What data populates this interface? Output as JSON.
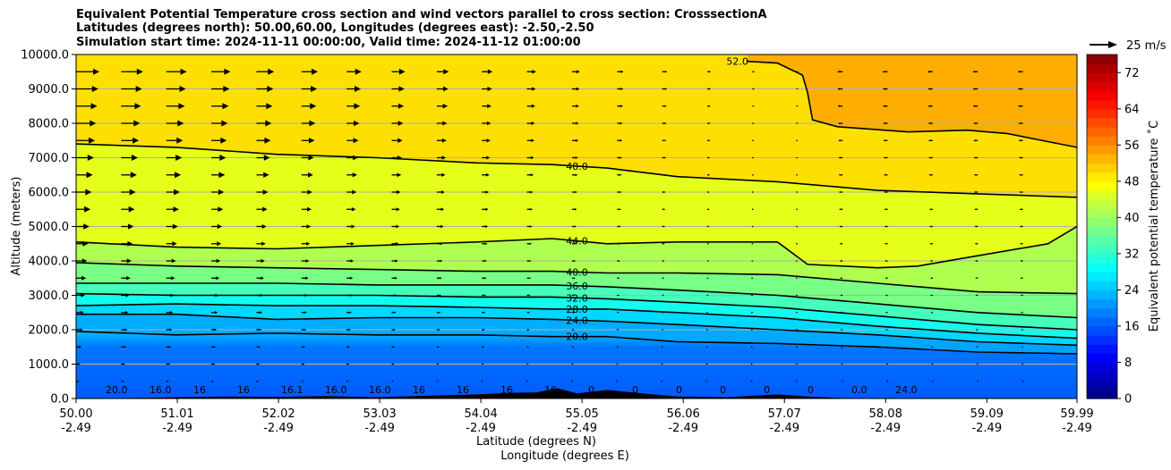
{
  "header": {
    "title_line1": "Equivalent Potential Temperature cross section and wind vectors parallel to cross section: CrosssectionA",
    "title_line2": "Latitudes (degrees north): 50.00,60.00, Longitudes (degrees east): -2.50,-2.50",
    "title_line3": "Simulation start time: 2024-11-11 00:00:00, Valid time: 2024-11-12 01:00:00"
  },
  "chart_data": {
    "type": "contour",
    "title": "Equivalent Potential Temperature cross section and wind vectors parallel to cross section: CrosssectionA",
    "xlabel": "Latitude (degrees N)",
    "xlabel2": "Longitude (degrees E)",
    "ylabel": "Altitude (meters)",
    "xlim": [
      50.0,
      59.99
    ],
    "ylim": [
      0,
      10000
    ],
    "x_ticks": [
      {
        "value": 50.0,
        "lat": "50.00",
        "lon": "-2.49"
      },
      {
        "value": 51.01,
        "lat": "51.01",
        "lon": "-2.49"
      },
      {
        "value": 52.02,
        "lat": "52.02",
        "lon": "-2.49"
      },
      {
        "value": 53.03,
        "lat": "53.03",
        "lon": "-2.49"
      },
      {
        "value": 54.04,
        "lat": "54.04",
        "lon": "-2.49"
      },
      {
        "value": 55.05,
        "lat": "55.05",
        "lon": "-2.49"
      },
      {
        "value": 56.06,
        "lat": "56.06",
        "lon": "-2.49"
      },
      {
        "value": 57.07,
        "lat": "57.07",
        "lon": "-2.49"
      },
      {
        "value": 58.08,
        "lat": "58.08",
        "lon": "-2.49"
      },
      {
        "value": 59.09,
        "lat": "59.09",
        "lon": "-2.49"
      },
      {
        "value": 59.99,
        "lat": "59.99",
        "lon": "-2.49"
      }
    ],
    "y_ticks": [
      {
        "value": 0,
        "label": "0.0"
      },
      {
        "value": 1000,
        "label": "1000.0"
      },
      {
        "value": 2000,
        "label": "2000.0"
      },
      {
        "value": 3000,
        "label": "3000.0"
      },
      {
        "value": 4000,
        "label": "4000.0"
      },
      {
        "value": 5000,
        "label": "5000.0"
      },
      {
        "value": 6000,
        "label": "6000.0"
      },
      {
        "value": 7000,
        "label": "7000.0"
      },
      {
        "value": 8000,
        "label": "8000.0"
      },
      {
        "value": 9000,
        "label": "9000.0"
      },
      {
        "value": 10000,
        "label": "10000.0"
      }
    ],
    "grid": true,
    "colorbar": {
      "label": "Equivalent potential temperature ˚C",
      "min": 0,
      "max": 76,
      "ticks": [
        {
          "value": 0,
          "label": "0"
        },
        {
          "value": 8,
          "label": "8"
        },
        {
          "value": 16,
          "label": "16"
        },
        {
          "value": 24,
          "label": "24"
        },
        {
          "value": 32,
          "label": "32"
        },
        {
          "value": 40,
          "label": "40"
        },
        {
          "value": 48,
          "label": "48"
        },
        {
          "value": 56,
          "label": "56"
        },
        {
          "value": 64,
          "label": "64"
        },
        {
          "value": 72,
          "label": "72"
        }
      ]
    },
    "reference_vector": {
      "label": "25 m/s",
      "speed": 25
    },
    "contours": [
      {
        "level": 20,
        "label": "20.0",
        "label_x": 55.0,
        "points": [
          [
            50.0,
            1950
          ],
          [
            51.0,
            1850
          ],
          [
            52.0,
            1900
          ],
          [
            53.0,
            1850
          ],
          [
            54.0,
            1850
          ],
          [
            54.75,
            1800
          ],
          [
            55.3,
            1800
          ],
          [
            56.0,
            1650
          ],
          [
            57.0,
            1600
          ],
          [
            58.0,
            1500
          ],
          [
            59.0,
            1350
          ],
          [
            59.99,
            1300
          ]
        ]
      },
      {
        "level": 24,
        "label": "24.0",
        "label_x": 55.0,
        "points": [
          [
            50.0,
            2450
          ],
          [
            51.0,
            2450
          ],
          [
            52.0,
            2300
          ],
          [
            53.0,
            2350
          ],
          [
            54.0,
            2350
          ],
          [
            54.75,
            2300
          ],
          [
            55.3,
            2250
          ],
          [
            56.0,
            2150
          ],
          [
            57.0,
            2000
          ],
          [
            58.0,
            1850
          ],
          [
            59.0,
            1650
          ],
          [
            59.99,
            1550
          ]
        ]
      },
      {
        "level": 28,
        "label": "28.0",
        "label_x": 55.0,
        "points": [
          [
            50.0,
            2700
          ],
          [
            51.0,
            2750
          ],
          [
            52.0,
            2700
          ],
          [
            53.0,
            2700
          ],
          [
            54.0,
            2650
          ],
          [
            54.75,
            2600
          ],
          [
            55.3,
            2600
          ],
          [
            56.0,
            2500
          ],
          [
            57.0,
            2350
          ],
          [
            58.0,
            2100
          ],
          [
            59.0,
            1900
          ],
          [
            59.99,
            1750
          ]
        ]
      },
      {
        "level": 32,
        "label": "32.0",
        "label_x": 55.0,
        "points": [
          [
            50.0,
            3050
          ],
          [
            51.0,
            3000
          ],
          [
            52.0,
            3000
          ],
          [
            53.0,
            3000
          ],
          [
            54.0,
            2950
          ],
          [
            54.75,
            2950
          ],
          [
            55.3,
            2900
          ],
          [
            56.0,
            2800
          ],
          [
            57.0,
            2650
          ],
          [
            58.0,
            2400
          ],
          [
            59.0,
            2150
          ],
          [
            59.99,
            2000
          ]
        ]
      },
      {
        "level": 36,
        "label": "36.0",
        "label_x": 55.0,
        "points": [
          [
            50.0,
            3350
          ],
          [
            51.0,
            3350
          ],
          [
            52.0,
            3350
          ],
          [
            53.0,
            3300
          ],
          [
            54.0,
            3300
          ],
          [
            54.75,
            3300
          ],
          [
            55.3,
            3250
          ],
          [
            56.0,
            3150
          ],
          [
            57.0,
            3000
          ],
          [
            58.0,
            2750
          ],
          [
            59.0,
            2500
          ],
          [
            59.99,
            2350
          ]
        ]
      },
      {
        "level": 40,
        "label": "40.0",
        "label_x": 55.0,
        "points": [
          [
            50.0,
            3950
          ],
          [
            51.0,
            3850
          ],
          [
            52.0,
            3800
          ],
          [
            53.0,
            3750
          ],
          [
            54.0,
            3700
          ],
          [
            54.75,
            3700
          ],
          [
            55.3,
            3650
          ],
          [
            56.0,
            3650
          ],
          [
            57.0,
            3600
          ],
          [
            58.0,
            3350
          ],
          [
            59.0,
            3100
          ],
          [
            59.99,
            3050
          ]
        ]
      },
      {
        "level": 44,
        "label": "44.0",
        "label_x": 55.0,
        "points": [
          [
            50.0,
            4550
          ],
          [
            51.0,
            4400
          ],
          [
            52.0,
            4350
          ],
          [
            53.0,
            4450
          ],
          [
            54.0,
            4550
          ],
          [
            54.75,
            4650
          ],
          [
            55.3,
            4500
          ],
          [
            56.0,
            4550
          ],
          [
            57.0,
            4550
          ],
          [
            57.3,
            3900
          ],
          [
            58.0,
            3800
          ],
          [
            58.4,
            3850
          ],
          [
            59.0,
            4150
          ],
          [
            59.7,
            4500
          ],
          [
            59.99,
            5000
          ]
        ]
      },
      {
        "level": 48,
        "label": "48.0",
        "label_x": 55.0,
        "points": [
          [
            50.0,
            7400
          ],
          [
            51.0,
            7300
          ],
          [
            52.0,
            7100
          ],
          [
            53.0,
            7000
          ],
          [
            54.0,
            6850
          ],
          [
            54.75,
            6800
          ],
          [
            55.3,
            6700
          ],
          [
            56.0,
            6450
          ],
          [
            57.0,
            6300
          ],
          [
            58.0,
            6050
          ],
          [
            59.0,
            5950
          ],
          [
            59.99,
            5850
          ]
        ]
      },
      {
        "level": 52,
        "label": "52.0",
        "label_x": 56.6,
        "points": [
          [
            56.7,
            9800
          ],
          [
            57.0,
            9750
          ],
          [
            57.25,
            9400
          ],
          [
            57.3,
            8900
          ],
          [
            57.35,
            8100
          ],
          [
            57.6,
            7900
          ],
          [
            58.3,
            7750
          ],
          [
            58.9,
            7800
          ],
          [
            59.3,
            7700
          ],
          [
            59.99,
            7300
          ]
        ]
      }
    ],
    "contour_labels_near_surface": [
      "20.0",
      "16.0",
      "16",
      "16",
      "16.1",
      "16.0",
      "16.0",
      "16",
      "16",
      "16",
      "16",
      "0",
      "0",
      "0",
      "0",
      "0",
      "0",
      "0.0",
      "24.0"
    ],
    "wind_vectors_description": "westerly (positive) flow strongest aloft in the south, weakening northward; weak easterly (negative) flow north of 57.5N"
  }
}
